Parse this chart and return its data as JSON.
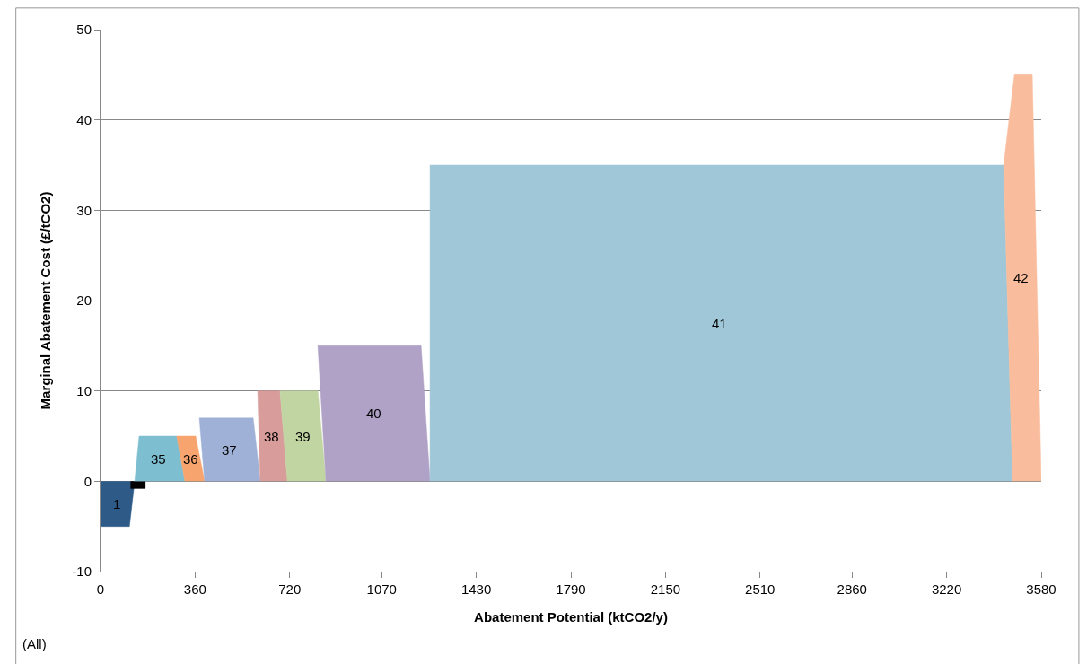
{
  "chart_data": {
    "type": "area",
    "xlabel": "Abatement Potential (ktCO2/y)",
    "ylabel": "Marginal Abatement Cost (£/tCO2)",
    "annotations": [
      "(All)"
    ],
    "xlim": [
      0,
      3580
    ],
    "xticks": [
      0,
      360,
      720,
      1070,
      1430,
      1790,
      2150,
      2510,
      2860,
      3220,
      3580
    ],
    "ylim": [
      -10,
      50
    ],
    "yticks": [
      -10,
      0,
      10,
      20,
      30,
      40,
      50
    ],
    "grid": "y",
    "legend": false,
    "series": [
      {
        "name": "1",
        "color": "#2e5a88",
        "x": [
          0,
          0,
          110,
          130
        ],
        "values": [
          0,
          -5,
          -5,
          0
        ]
      },
      {
        "color": "#000000",
        "x": [
          115,
          115,
          170,
          170
        ],
        "values": [
          0,
          -0.8,
          -0.8,
          0
        ]
      },
      {
        "name": "35",
        "color": "#7dbfd1",
        "x": [
          130,
          147,
          290,
          321
        ],
        "values": [
          0,
          5,
          5,
          0
        ]
      },
      {
        "name": "36",
        "color": "#f8a46e",
        "x": [
          321,
          290,
          362,
          396
        ],
        "values": [
          0,
          5,
          5,
          0
        ]
      },
      {
        "name": "37",
        "color": "#9fb1d6",
        "x": [
          396,
          376,
          581,
          608
        ],
        "values": [
          0,
          7,
          7,
          0
        ]
      },
      {
        "name": "38",
        "color": "#d89c9a",
        "x": [
          608,
          598,
          683,
          711
        ],
        "values": [
          0,
          10,
          10,
          0
        ]
      },
      {
        "name": "39",
        "color": "#c1d5a2",
        "x": [
          711,
          683,
          827,
          858
        ],
        "values": [
          0,
          10,
          10,
          0
        ]
      },
      {
        "name": "40",
        "color": "#b0a2c7",
        "x": [
          858,
          827,
          1220,
          1254
        ],
        "values": [
          0,
          15,
          15,
          0
        ]
      },
      {
        "name": "41",
        "color": "#9fc7d7",
        "x": [
          1254,
          1254,
          3437,
          3471
        ],
        "values": [
          0,
          35,
          35,
          0
        ]
      },
      {
        "name": "42",
        "color": "#f9bc9c",
        "x": [
          3471,
          3437,
          3478,
          3546,
          3580
        ],
        "values": [
          0,
          35,
          45,
          45,
          0
        ]
      }
    ]
  }
}
